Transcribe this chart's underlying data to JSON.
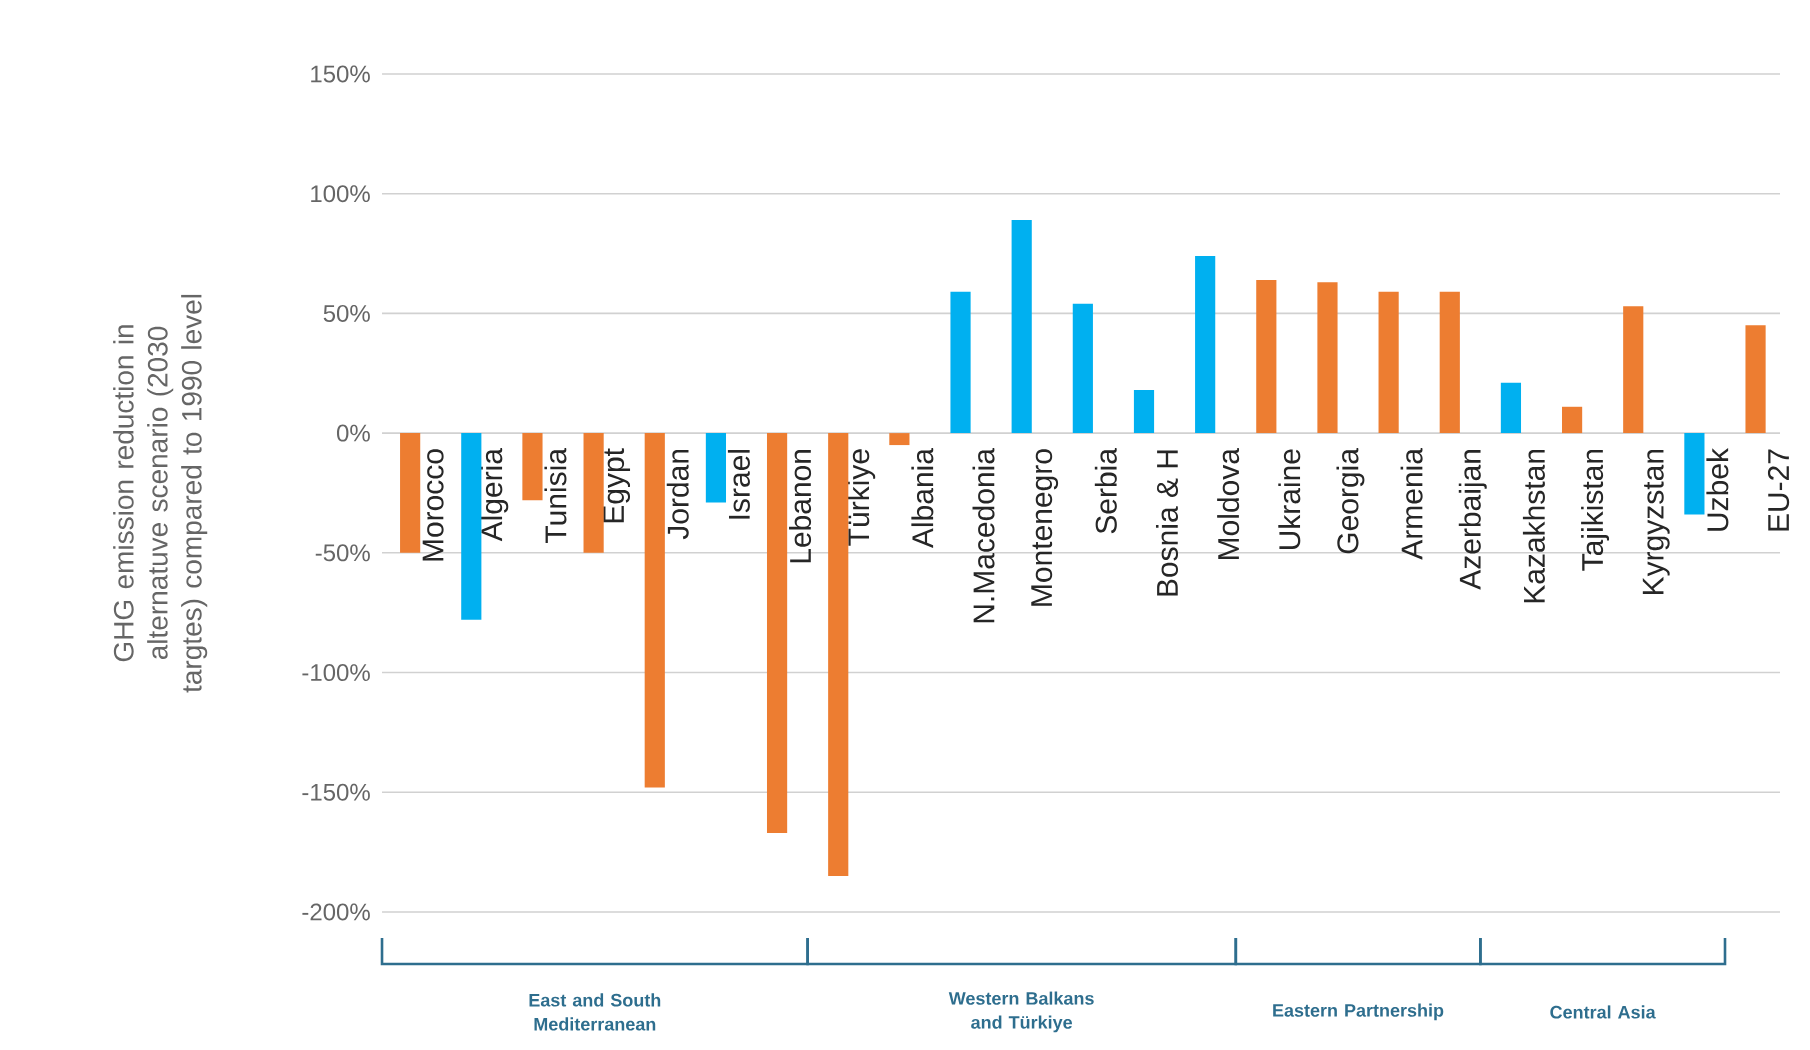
{
  "chart_data": {
    "type": "bar",
    "ylabel": "GHG emission reduction in alternatuve scenario (2030 targtes) compared to 1990 level",
    "categories": [
      "Morocco",
      "Algeria",
      "Tunisia",
      "Egypt",
      "Jordan",
      "Israel",
      "Lebanon",
      "Türkiye",
      "Albania",
      "N.Macedonia",
      "Montenegro",
      "Serbia",
      "Bosnia & H",
      "Moldova",
      "Ukraine",
      "Georgia",
      "Armenia",
      "Azerbaijan",
      "Kazakhstan",
      "Tajikistan",
      "Kyrgyzstan",
      "Uzbek",
      "EU-27"
    ],
    "values": [
      -50,
      -78,
      -28,
      -50,
      -148,
      -29,
      -167,
      -185,
      -5,
      59,
      89,
      54,
      18,
      74,
      64,
      63,
      59,
      59,
      21,
      11,
      53,
      -34,
      45
    ],
    "colors": [
      "#ed7d31",
      "#00b0f0",
      "#ed7d31",
      "#ed7d31",
      "#ed7d31",
      "#00b0f0",
      "#ed7d31",
      "#ed7d31",
      "#ed7d31",
      "#00b0f0",
      "#00b0f0",
      "#00b0f0",
      "#00b0f0",
      "#00b0f0",
      "#ed7d31",
      "#ed7d31",
      "#ed7d31",
      "#ed7d31",
      "#00b0f0",
      "#ed7d31",
      "#ed7d31",
      "#00b0f0",
      "#ed7d31"
    ],
    "ylim": [
      -200,
      150
    ],
    "yticks": [
      {
        "value": -200,
        "label": "-200%"
      },
      {
        "value": -150,
        "label": "-150%"
      },
      {
        "value": -100,
        "label": "-100%"
      },
      {
        "value": -50,
        "label": "-50%"
      },
      {
        "value": 0,
        "label": "0%"
      },
      {
        "value": 50,
        "label": "50%"
      },
      {
        "value": 100,
        "label": "100%"
      },
      {
        "value": 150,
        "label": "150%"
      }
    ],
    "grid": "y",
    "annotations": [
      "East and South Mediterranean",
      "Western Balkans and Türkiye",
      "Eastern Partnership",
      "Central Asia"
    ]
  }
}
